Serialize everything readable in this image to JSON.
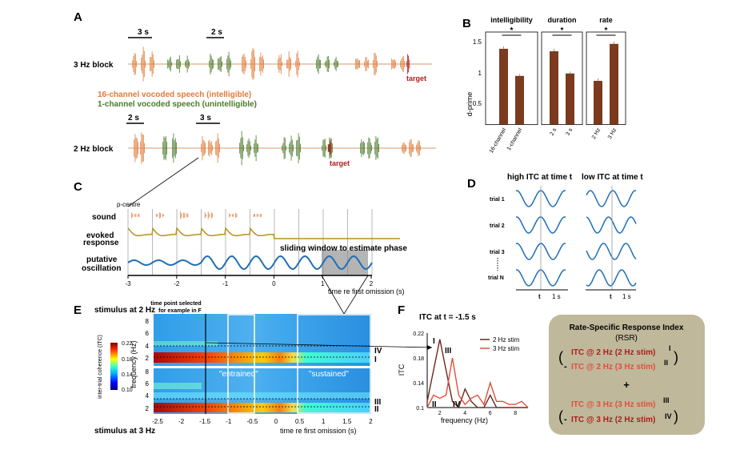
{
  "colors": {
    "orange": "#e07b39",
    "green": "#4a7a2a",
    "red": "#b01c1c",
    "brown": "#7b3c1e",
    "blue": "#1f6fb5",
    "gold": "#b8901c",
    "tan_box": "#bfb89a",
    "pink": "#e0503c"
  },
  "panel_a": {
    "letter": "A",
    "block1_label": "3 Hz block",
    "block2_label": "2 Hz block",
    "scale_3s": "3 s",
    "scale_2s": "2 s",
    "target": "target",
    "legend_intelligible": "16-channel vocoded speech (intelligible)",
    "legend_unintelligible": "1-channel vocoded speech (unintelligible)"
  },
  "panel_b": {
    "letter": "B",
    "ylabel": "d-prime",
    "yticks": [
      "1.5",
      "1",
      "0.5"
    ],
    "sig": "*",
    "groups": [
      {
        "title": "intelligibility",
        "bars": [
          {
            "label": "16-channel",
            "value": 1.41,
            "err": 0.04
          },
          {
            "label": "1-channel",
            "value": 0.97,
            "err": 0.03
          }
        ]
      },
      {
        "title": "duration",
        "bars": [
          {
            "label": "2 s",
            "value": 1.37,
            "err": 0.04
          },
          {
            "label": "3 s",
            "value": 1.01,
            "err": 0.03
          }
        ]
      },
      {
        "title": "rate",
        "bars": [
          {
            "label": "2 Hz",
            "value": 0.89,
            "err": 0.04
          },
          {
            "label": "3 Hz",
            "value": 1.49,
            "err": 0.04
          }
        ]
      }
    ]
  },
  "panel_c": {
    "letter": "C",
    "pcentre": "p-centre",
    "sound": "sound",
    "evoked1": "evoked",
    "evoked2": "response",
    "putative1": "putative",
    "oscillation": "oscillation",
    "sliding": "sliding window to estimate phase",
    "xlabel": "time re first omission (s)",
    "xticks": [
      "-3",
      "-2",
      "-1",
      "0",
      "1",
      "2"
    ]
  },
  "panel_d": {
    "letter": "D",
    "high": "high ITC at time t",
    "low": "low ITC at time t",
    "trials": [
      "trial 1",
      "trial 2",
      "trial 3",
      "trial N"
    ],
    "t": "t",
    "onesec": "1 s"
  },
  "panel_e": {
    "letter": "E",
    "top_title": "stimulus at 2 Hz",
    "bottom_title": "stimulus at 3 Hz",
    "annotation1": "time point selected",
    "annotation2": "for example in F",
    "entrained": "\"entrained\"",
    "sustained": "\"sustained\"",
    "ylabel": "frequency (Hz)",
    "xlabel": "time re first omission (s)",
    "yticks_top": [
      "8",
      "6",
      "4",
      "2"
    ],
    "yticks_bottom": [
      "8",
      "6",
      "4",
      "2"
    ],
    "xticks": [
      "-2.5",
      "-2",
      "-1.5",
      "-1",
      "-0.5",
      "0",
      "0.5",
      "1",
      "1.5",
      "2"
    ],
    "roman": [
      "IV",
      "I",
      "III",
      "II"
    ],
    "cbar_label": "inter-trial coherence (ITC)",
    "cbar_ticks": [
      "0.22",
      "0.18",
      "0.14",
      "0.10"
    ]
  },
  "panel_f": {
    "letter": "F",
    "title": "ITC at t = -1.5 s",
    "ylabel": "ITC",
    "xlabel": "frequency (Hz)",
    "yticks": [
      "0.22",
      "0.18",
      "0.14",
      "0.1"
    ],
    "xticks": [
      "2",
      "4",
      "6",
      "8"
    ],
    "legend": [
      "2 Hz stim",
      "3 Hz stim"
    ],
    "roman": [
      "I",
      "III",
      "II",
      "IV"
    ]
  },
  "chart_data": {
    "type": "line",
    "title": "ITC at t = -1.5 s",
    "xlabel": "frequency (Hz)",
    "ylabel": "ITC",
    "ylim": [
      0.1,
      0.22
    ],
    "x": [
      1,
      1.5,
      2,
      2.5,
      3,
      3.5,
      4,
      4.5,
      5,
      5.5,
      6,
      6.5,
      7,
      7.5,
      8,
      8.5,
      9
    ],
    "series": [
      {
        "name": "2 Hz stim",
        "values": [
          0.11,
          0.16,
          0.21,
          0.16,
          0.11,
          0.1,
          0.13,
          0.11,
          0.1,
          0.1,
          0.12,
          0.1,
          0.1,
          0.1,
          0.1,
          0.1,
          0.1
        ]
      },
      {
        "name": "3 Hz stim",
        "values": [
          0.1,
          0.12,
          0.115,
          0.12,
          0.18,
          0.12,
          0.105,
          0.115,
          0.12,
          0.105,
          0.14,
          0.11,
          0.11,
          0.105,
          0.105,
          0.11,
          0.1
        ]
      }
    ]
  },
  "panel_rsr": {
    "title1": "Rate-Specific Response Index",
    "title2": "(RSR)",
    "line1": "ITC @ 2 Hz (2 Hz stim)",
    "line2": "ITC @ 2 Hz (3 Hz stim)",
    "line3": "ITC @ 3 Hz (3 Hz stim)",
    "line4": "ITC @ 3 Hz (2 Hz stim)",
    "roman": [
      "I",
      "II",
      "III",
      "IV"
    ],
    "plus": "+",
    "minus": "-",
    "open": "(",
    "close": ")"
  }
}
